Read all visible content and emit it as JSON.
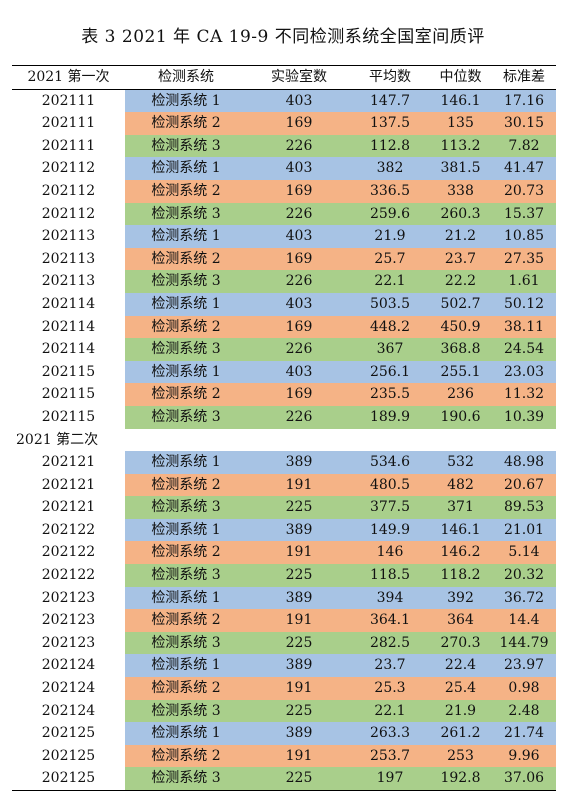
{
  "title": "表 3 2021 年 CA 19-9 不同检测系统全国室间质评",
  "headers": [
    "2021 第一次",
    "检测系统",
    "实验室数",
    "平均数",
    "中位数",
    "标准差"
  ],
  "sections": [
    {
      "label": "",
      "rows": [
        [
          "202111",
          "检测系统 1",
          "403",
          "147.7",
          "146.1",
          "17.16"
        ],
        [
          "202111",
          "检测系统 2",
          "169",
          "137.5",
          "135",
          "30.15"
        ],
        [
          "202111",
          "检测系统 3",
          "226",
          "112.8",
          "113.2",
          "7.82"
        ],
        [
          "202112",
          "检测系统 1",
          "403",
          "382",
          "381.5",
          "41.47"
        ],
        [
          "202112",
          "检测系统 2",
          "169",
          "336.5",
          "338",
          "20.73"
        ],
        [
          "202112",
          "检测系统 3",
          "226",
          "259.6",
          "260.3",
          "15.37"
        ],
        [
          "202113",
          "检测系统 1",
          "403",
          "21.9",
          "21.2",
          "10.85"
        ],
        [
          "202113",
          "检测系统 2",
          "169",
          "25.7",
          "23.7",
          "27.35"
        ],
        [
          "202113",
          "检测系统 3",
          "226",
          "22.1",
          "22.2",
          "1.61"
        ],
        [
          "202114",
          "检测系统 1",
          "403",
          "503.5",
          "502.7",
          "50.12"
        ],
        [
          "202114",
          "检测系统 2",
          "169",
          "448.2",
          "450.9",
          "38.11"
        ],
        [
          "202114",
          "检测系统 3",
          "226",
          "367",
          "368.8",
          "24.54"
        ],
        [
          "202115",
          "检测系统 1",
          "403",
          "256.1",
          "255.1",
          "23.03"
        ],
        [
          "202115",
          "检测系统 2",
          "169",
          "235.5",
          "236",
          "11.32"
        ],
        [
          "202115",
          "检测系统 3",
          "226",
          "189.9",
          "190.6",
          "10.39"
        ]
      ]
    },
    {
      "label": "2021 第二次",
      "rows": [
        [
          "202121",
          "检测系统 1",
          "389",
          "534.6",
          "532",
          "48.98"
        ],
        [
          "202121",
          "检测系统 2",
          "191",
          "480.5",
          "482",
          "20.67"
        ],
        [
          "202121",
          "检测系统 3",
          "225",
          "377.5",
          "371",
          "89.53"
        ],
        [
          "202122",
          "检测系统 1",
          "389",
          "149.9",
          "146.1",
          "21.01"
        ],
        [
          "202122",
          "检测系统 2",
          "191",
          "146",
          "146.2",
          "5.14"
        ],
        [
          "202122",
          "检测系统 3",
          "225",
          "118.5",
          "118.2",
          "20.32"
        ],
        [
          "202123",
          "检测系统 1",
          "389",
          "394",
          "392",
          "36.72"
        ],
        [
          "202123",
          "检测系统 2",
          "191",
          "364.1",
          "364",
          "14.4"
        ],
        [
          "202123",
          "检测系统 3",
          "225",
          "282.5",
          "270.3",
          "144.79"
        ],
        [
          "202124",
          "检测系统 1",
          "389",
          "23.7",
          "22.4",
          "23.97"
        ],
        [
          "202124",
          "检测系统 2",
          "191",
          "25.3",
          "25.4",
          "0.98"
        ],
        [
          "202124",
          "检测系统 3",
          "225",
          "22.1",
          "21.9",
          "2.48"
        ],
        [
          "202125",
          "检测系统 1",
          "389",
          "263.3",
          "261.2",
          "21.74"
        ],
        [
          "202125",
          "检测系统 2",
          "191",
          "253.7",
          "253",
          "9.96"
        ],
        [
          "202125",
          "检测系统 3",
          "225",
          "197",
          "192.8",
          "37.06"
        ]
      ]
    }
  ],
  "colors": {
    "system_1": "#a7c3e4",
    "system_2": "#f5b386",
    "system_3": "#a9cf8b"
  }
}
